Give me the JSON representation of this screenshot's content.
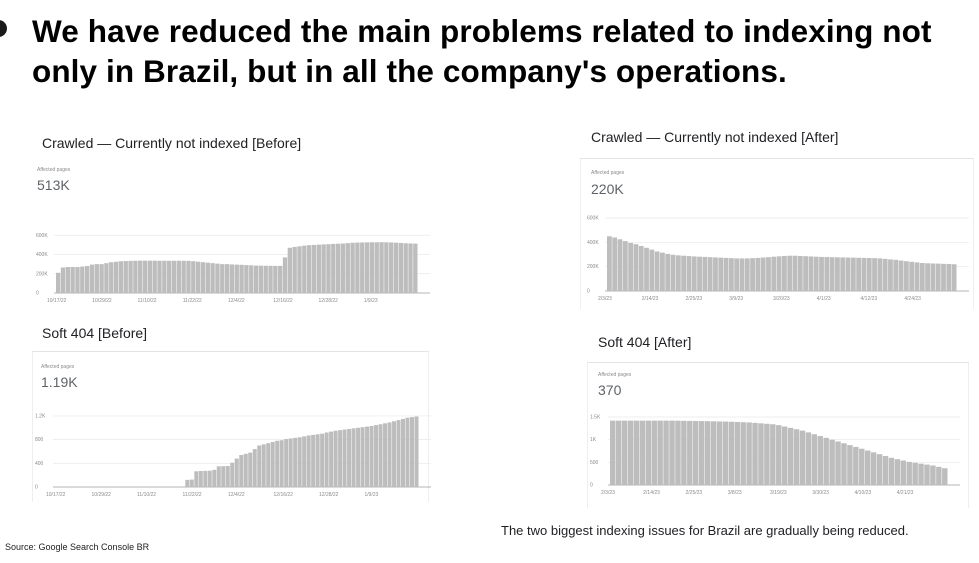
{
  "headline": "We have reduced the main problems related to indexing not only in Brazil, but in all the company's operations.",
  "caption": "The two biggest indexing issues for Brazil are gradually being reduced.",
  "source": "Source: Google Search Console BR",
  "colors": {
    "bar": "#bdbdbd",
    "grid": "#e8e8e8",
    "axis": "#9e9e9e",
    "text": "#202124"
  },
  "panels": {
    "crawled_before": {
      "title": "Crawled — Currently not indexed [Before]",
      "metric_label": "Affected pages",
      "metric_value": "513K"
    },
    "crawled_after": {
      "title": "Crawled — Currently not indexed [After]",
      "metric_label": "Affected pages",
      "metric_value": "220K"
    },
    "soft404_before": {
      "title": "Soft 404 [Before]",
      "metric_label": "Affected pages",
      "metric_value": "1.19K"
    },
    "soft404_after": {
      "title": "Soft 404 [After]",
      "metric_label": "Affected pages",
      "metric_value": "370"
    }
  },
  "chart_data": [
    {
      "id": "crawled_before",
      "type": "bar",
      "title": "Crawled — Currently not indexed [Before]",
      "ylim": [
        0,
        800000
      ],
      "y_ticks": [
        0,
        200000,
        400000,
        600000
      ],
      "y_tick_labels": [
        "0",
        "200K",
        "400K",
        "600K"
      ],
      "x_ticks": [
        "10/17/22",
        "10/29/22",
        "11/10/22",
        "11/22/22",
        "12/4/22",
        "12/16/22",
        "12/28/22",
        "1/9/23"
      ],
      "grid": true,
      "values": [
        210000,
        265000,
        270000,
        270000,
        270000,
        275000,
        280000,
        295000,
        300000,
        300000,
        310000,
        320000,
        325000,
        330000,
        332000,
        334000,
        335000,
        336000,
        336000,
        336000,
        336000,
        335000,
        335000,
        335000,
        335000,
        335000,
        335000,
        334000,
        330000,
        325000,
        320000,
        315000,
        310000,
        305000,
        300000,
        300000,
        297000,
        295000,
        293000,
        290000,
        288000,
        285000,
        284000,
        283000,
        282000,
        282000,
        282000,
        370000,
        470000,
        478000,
        485000,
        492000,
        497000,
        500000,
        502000,
        505000,
        507000,
        510000,
        512000,
        514000,
        518000,
        522000,
        524000,
        525000,
        526000,
        527000,
        527000,
        528000,
        527000,
        525000,
        523000,
        520000,
        517000,
        515000,
        513000
      ]
    },
    {
      "id": "crawled_after",
      "type": "bar",
      "title": "Crawled — Currently not indexed [After]",
      "ylim": [
        0,
        600000
      ],
      "y_ticks": [
        0,
        200000,
        400000,
        600000
      ],
      "y_tick_labels": [
        "0",
        "200K",
        "400K",
        "600K"
      ],
      "x_ticks": [
        "2/3/23",
        "2/14/23",
        "2/25/23",
        "3/9/23",
        "3/20/23",
        "4/1/23",
        "4/12/23",
        "4/24/23"
      ],
      "grid": true,
      "values": [
        450000,
        440000,
        425000,
        410000,
        395000,
        385000,
        370000,
        355000,
        340000,
        325000,
        315000,
        305000,
        298000,
        293000,
        290000,
        287000,
        284000,
        282000,
        280000,
        278000,
        276000,
        274000,
        272000,
        270000,
        268000,
        268000,
        268000,
        270000,
        272000,
        275000,
        278000,
        282000,
        285000,
        288000,
        290000,
        290000,
        288000,
        286000,
        284000,
        282000,
        280000,
        279000,
        278000,
        277000,
        276000,
        275000,
        274000,
        273000,
        272000,
        271000,
        270000,
        268000,
        264000,
        260000,
        256000,
        250000,
        245000,
        240000,
        235000,
        230000,
        228000,
        226000,
        225000,
        223000,
        222000,
        220000
      ]
    },
    {
      "id": "soft404_before",
      "type": "bar",
      "title": "Soft 404 [Before]",
      "ylim": [
        0,
        1300
      ],
      "y_ticks": [
        0,
        400,
        800,
        1200
      ],
      "y_tick_labels": [
        "0",
        "400",
        "800",
        "1.2K"
      ],
      "x_ticks": [
        "10/17/22",
        "10/29/22",
        "11/10/22",
        "11/22/22",
        "12/4/22",
        "12/16/22",
        "12/28/22",
        "1/9/23"
      ],
      "grid": true,
      "values": [
        0,
        0,
        0,
        0,
        0,
        0,
        0,
        0,
        0,
        0,
        0,
        0,
        0,
        0,
        0,
        0,
        0,
        0,
        0,
        0,
        0,
        0,
        0,
        0,
        0,
        0,
        0,
        0,
        0,
        120,
        125,
        265,
        270,
        272,
        275,
        290,
        350,
        352,
        355,
        410,
        480,
        540,
        560,
        580,
        640,
        700,
        720,
        740,
        760,
        780,
        790,
        810,
        820,
        830,
        840,
        855,
        870,
        880,
        890,
        900,
        920,
        935,
        950,
        960,
        970,
        980,
        990,
        1000,
        1010,
        1020,
        1030,
        1045,
        1060,
        1075,
        1090,
        1110,
        1130,
        1150,
        1170,
        1180,
        1190
      ]
    },
    {
      "id": "soft404_after",
      "type": "bar",
      "title": "Soft 404 [After]",
      "ylim": [
        0,
        1500
      ],
      "y_ticks": [
        0,
        500,
        1000,
        1500
      ],
      "y_tick_labels": [
        "0",
        "500",
        "1K",
        "1.5K"
      ],
      "x_ticks": [
        "2/3/23",
        "2/14/23",
        "2/25/23",
        "3/8/23",
        "3/19/23",
        "3/30/23",
        "4/10/23",
        "4/21/23"
      ],
      "grid": true,
      "values": [
        1420,
        1420,
        1420,
        1420,
        1420,
        1420,
        1420,
        1420,
        1420,
        1420,
        1420,
        1418,
        1416,
        1414,
        1412,
        1410,
        1408,
        1405,
        1402,
        1400,
        1395,
        1390,
        1385,
        1380,
        1370,
        1360,
        1350,
        1340,
        1320,
        1290,
        1260,
        1230,
        1200,
        1160,
        1120,
        1080,
        1040,
        1000,
        960,
        920,
        880,
        840,
        800,
        760,
        720,
        680,
        640,
        600,
        570,
        540,
        510,
        490,
        470,
        450,
        430,
        400,
        370
      ]
    }
  ]
}
